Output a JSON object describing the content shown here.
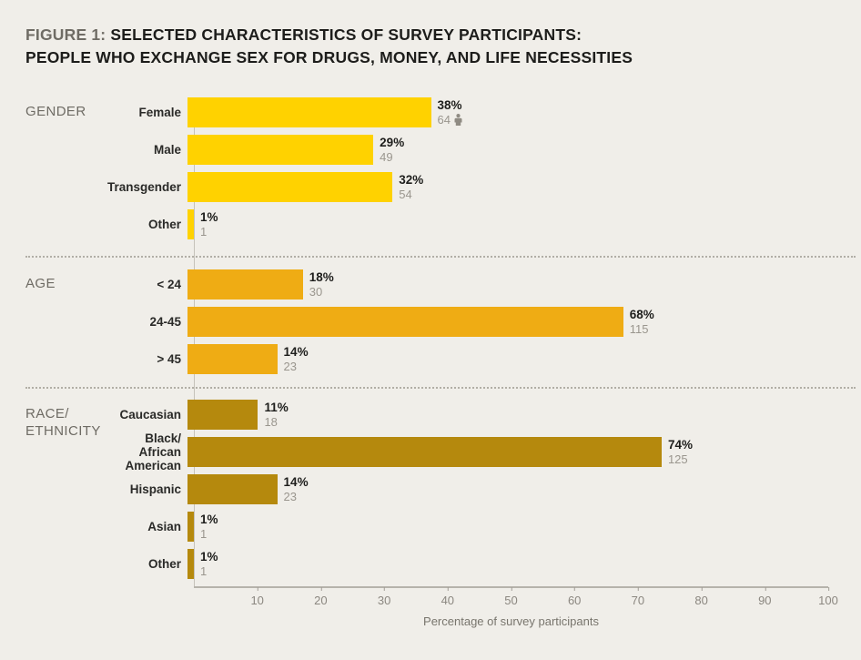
{
  "figure": {
    "title_prefix": "FIGURE 1:",
    "title_line1": "SELECTED CHARACTERISTICS OF SURVEY PARTICIPANTS:",
    "title_line2": "PEOPLE WHO EXCHANGE SEX FOR DRUGS, MONEY, AND LIFE NECESSITIES"
  },
  "chart_data": {
    "type": "bar",
    "orientation": "horizontal",
    "title": "FIGURE 1: SELECTED CHARACTERISTICS OF SURVEY PARTICIPANTS: PEOPLE WHO EXCHANGE SEX FOR DRUGS, MONEY, AND LIFE NECESSITIES",
    "xlabel": "Percentage of survey participants",
    "xlim": [
      0,
      100
    ],
    "x_ticks": [
      10,
      20,
      30,
      40,
      50,
      60,
      70,
      80,
      90,
      100
    ],
    "grid": false,
    "legend": "none",
    "value_label_format": "percent above count",
    "groups": [
      {
        "label": "GENDER",
        "color": "#ffd200",
        "rows": [
          {
            "label": "Female",
            "pct": 38,
            "count": 64,
            "icon": "person"
          },
          {
            "label": "Male",
            "pct": 29,
            "count": 49
          },
          {
            "label": "Transgender",
            "pct": 32,
            "count": 54
          },
          {
            "label": "Other",
            "pct": 1,
            "count": 1
          }
        ]
      },
      {
        "label": "AGE",
        "color": "#efac14",
        "rows": [
          {
            "label": "< 24",
            "pct": 18,
            "count": 30
          },
          {
            "label": "24-45",
            "pct": 68,
            "count": 115
          },
          {
            "label": "> 45",
            "pct": 14,
            "count": 23
          }
        ]
      },
      {
        "label": "RACE/\nETHNICITY",
        "color": "#b5890d",
        "rows": [
          {
            "label": "Caucasian",
            "pct": 11,
            "count": 18
          },
          {
            "label": "Black/\nAfrican American",
            "pct": 74,
            "count": 125
          },
          {
            "label": "Hispanic",
            "pct": 14,
            "count": 23
          },
          {
            "label": "Asian",
            "pct": 1,
            "count": 1
          },
          {
            "label": "Other",
            "pct": 1,
            "count": 1
          }
        ]
      }
    ]
  }
}
